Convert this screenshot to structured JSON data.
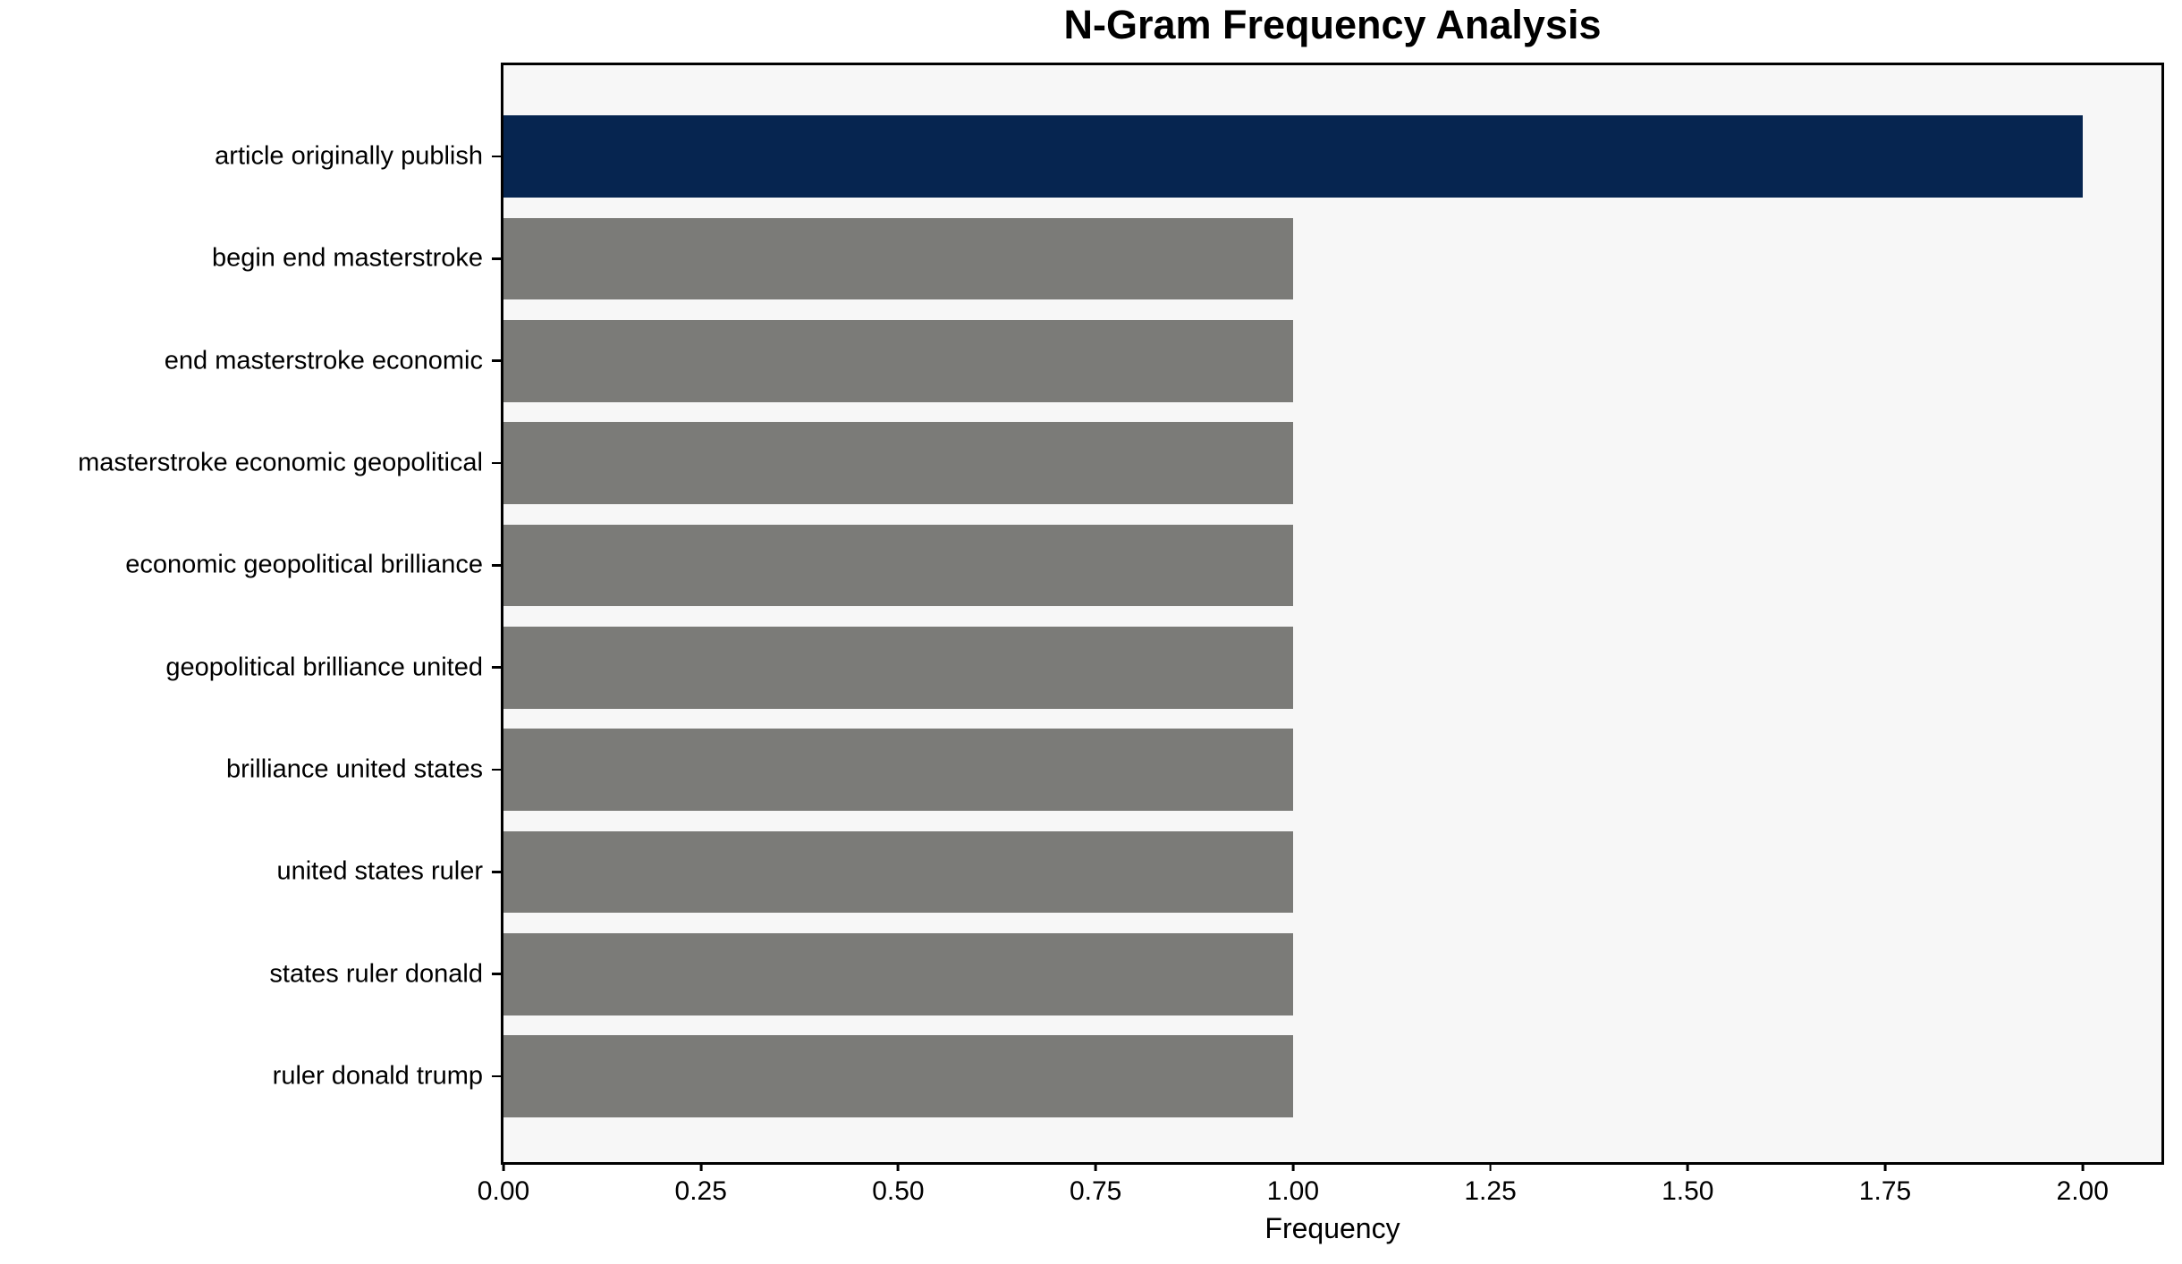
{
  "title": "N-Gram Frequency Analysis",
  "chart_data": {
    "type": "bar",
    "orientation": "horizontal",
    "title": "N-Gram Frequency Analysis",
    "xlabel": "Frequency",
    "ylabel": "",
    "categories": [
      "article originally publish",
      "begin end masterstroke",
      "end masterstroke economic",
      "masterstroke economic geopolitical",
      "economic geopolitical brilliance",
      "geopolitical brilliance united",
      "brilliance united states",
      "united states ruler",
      "states ruler donald",
      "ruler donald trump"
    ],
    "values": [
      2,
      1,
      1,
      1,
      1,
      1,
      1,
      1,
      1,
      1
    ],
    "bar_colors": [
      "#062550",
      "#7b7b78",
      "#7b7b78",
      "#7b7b78",
      "#7b7b78",
      "#7b7b78",
      "#7b7b78",
      "#7b7b78",
      "#7b7b78",
      "#7b7b78"
    ],
    "colors": {
      "highlight": "#062550",
      "default": "#7b7b78",
      "plot_background": "#f7f7f7",
      "figure_background": "#ffffff",
      "spine": "#000000",
      "text": "#000000"
    },
    "x_ticks": [
      "0.00",
      "0.25",
      "0.50",
      "0.75",
      "1.00",
      "1.25",
      "1.50",
      "1.75",
      "2.00"
    ],
    "xlim": [
      0,
      2.1
    ],
    "grid": false,
    "legend": "none"
  }
}
